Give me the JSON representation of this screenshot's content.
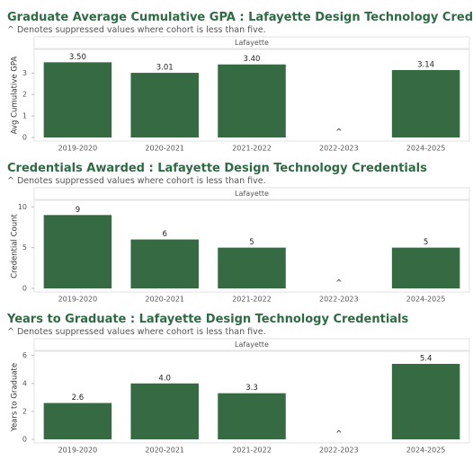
{
  "chart_data": [
    {
      "type": "bar",
      "title": "Graduate Average Cumulative GPA : Lafayette Design Technology Credentials",
      "subtitle": "^ Denotes suppressed values where cohort is less than five.",
      "facet": "Lafayette",
      "y_label": "Avg Cumulative GPA",
      "categories": [
        "2019-2020",
        "2020-2021",
        "2021-2022",
        "2022-2023",
        "2024-2025"
      ],
      "values": [
        3.5,
        3.01,
        3.4,
        null,
        3.14
      ],
      "value_labels": [
        "3.50",
        "3.01",
        "3.40",
        "^",
        "3.14"
      ],
      "color": "#356a42",
      "ylim": [
        0,
        4.1
      ],
      "yticks": [
        0,
        1,
        2,
        3
      ]
    },
    {
      "type": "bar",
      "title": "Credentials Awarded : Lafayette Design Technology Credentials",
      "subtitle": "^ Denotes suppressed values where cohort is less than five.",
      "facet": "Lafayette",
      "y_label": "Credential Count",
      "categories": [
        "2019-2020",
        "2020-2021",
        "2021-2022",
        "2022-2023",
        "2024-2025"
      ],
      "values": [
        9,
        6,
        5,
        null,
        5
      ],
      "value_labels": [
        "9",
        "6",
        "5",
        "^",
        "5"
      ],
      "color": "#356a42",
      "ylim": [
        0,
        10.8
      ],
      "yticks": [
        0,
        5,
        10
      ]
    },
    {
      "type": "bar",
      "title": "Years to Graduate : Lafayette Design Technology Credentials",
      "subtitle": "^ Denotes suppressed values where cohort is less than five.",
      "facet": "Lafayette",
      "y_label": "Years to Graduate",
      "categories": [
        "2019-2020",
        "2020-2021",
        "2021-2022",
        "2022-2023",
        "2024-2025"
      ],
      "values": [
        2.6,
        4.0,
        3.3,
        null,
        5.4
      ],
      "value_labels": [
        "2.6",
        "4.0",
        "3.3",
        "^",
        "5.4"
      ],
      "color": "#356a42",
      "ylim": [
        0,
        6.3
      ],
      "yticks": [
        0,
        2,
        4,
        6
      ]
    }
  ]
}
